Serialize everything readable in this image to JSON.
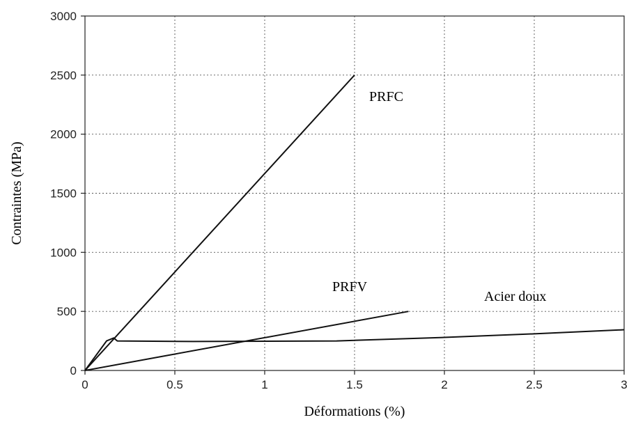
{
  "chart_data": {
    "type": "line",
    "xlabel": "Déformations (%)",
    "ylabel": "Contraintes (MPa)",
    "xlim": [
      0,
      3
    ],
    "ylim": [
      0,
      3000
    ],
    "x_ticks": [
      "0",
      "0.5",
      "1",
      "1.5",
      "2",
      "2.5",
      "3"
    ],
    "y_ticks": [
      "0",
      "500",
      "1000",
      "1500",
      "2000",
      "2500",
      "3000"
    ],
    "grid": true,
    "series": [
      {
        "name": "PRFC",
        "points": [
          [
            0,
            0
          ],
          [
            1.5,
            2500
          ]
        ]
      },
      {
        "name": "PRFV",
        "points": [
          [
            0,
            0
          ],
          [
            1.8,
            500
          ]
        ]
      },
      {
        "name": "Acier doux",
        "points": [
          [
            0,
            0
          ],
          [
            0.12,
            250
          ],
          [
            0.16,
            275
          ],
          [
            0.18,
            250
          ],
          [
            0.6,
            245
          ],
          [
            1.4,
            250
          ],
          [
            2.0,
            280
          ],
          [
            2.5,
            310
          ],
          [
            3.0,
            345
          ]
        ]
      }
    ],
    "annotations": [
      {
        "text": "PRFC",
        "series": "PRFC"
      },
      {
        "text": "PRFV",
        "series": "PRFV"
      },
      {
        "text": "Acier doux",
        "series": "Acier doux"
      }
    ]
  }
}
